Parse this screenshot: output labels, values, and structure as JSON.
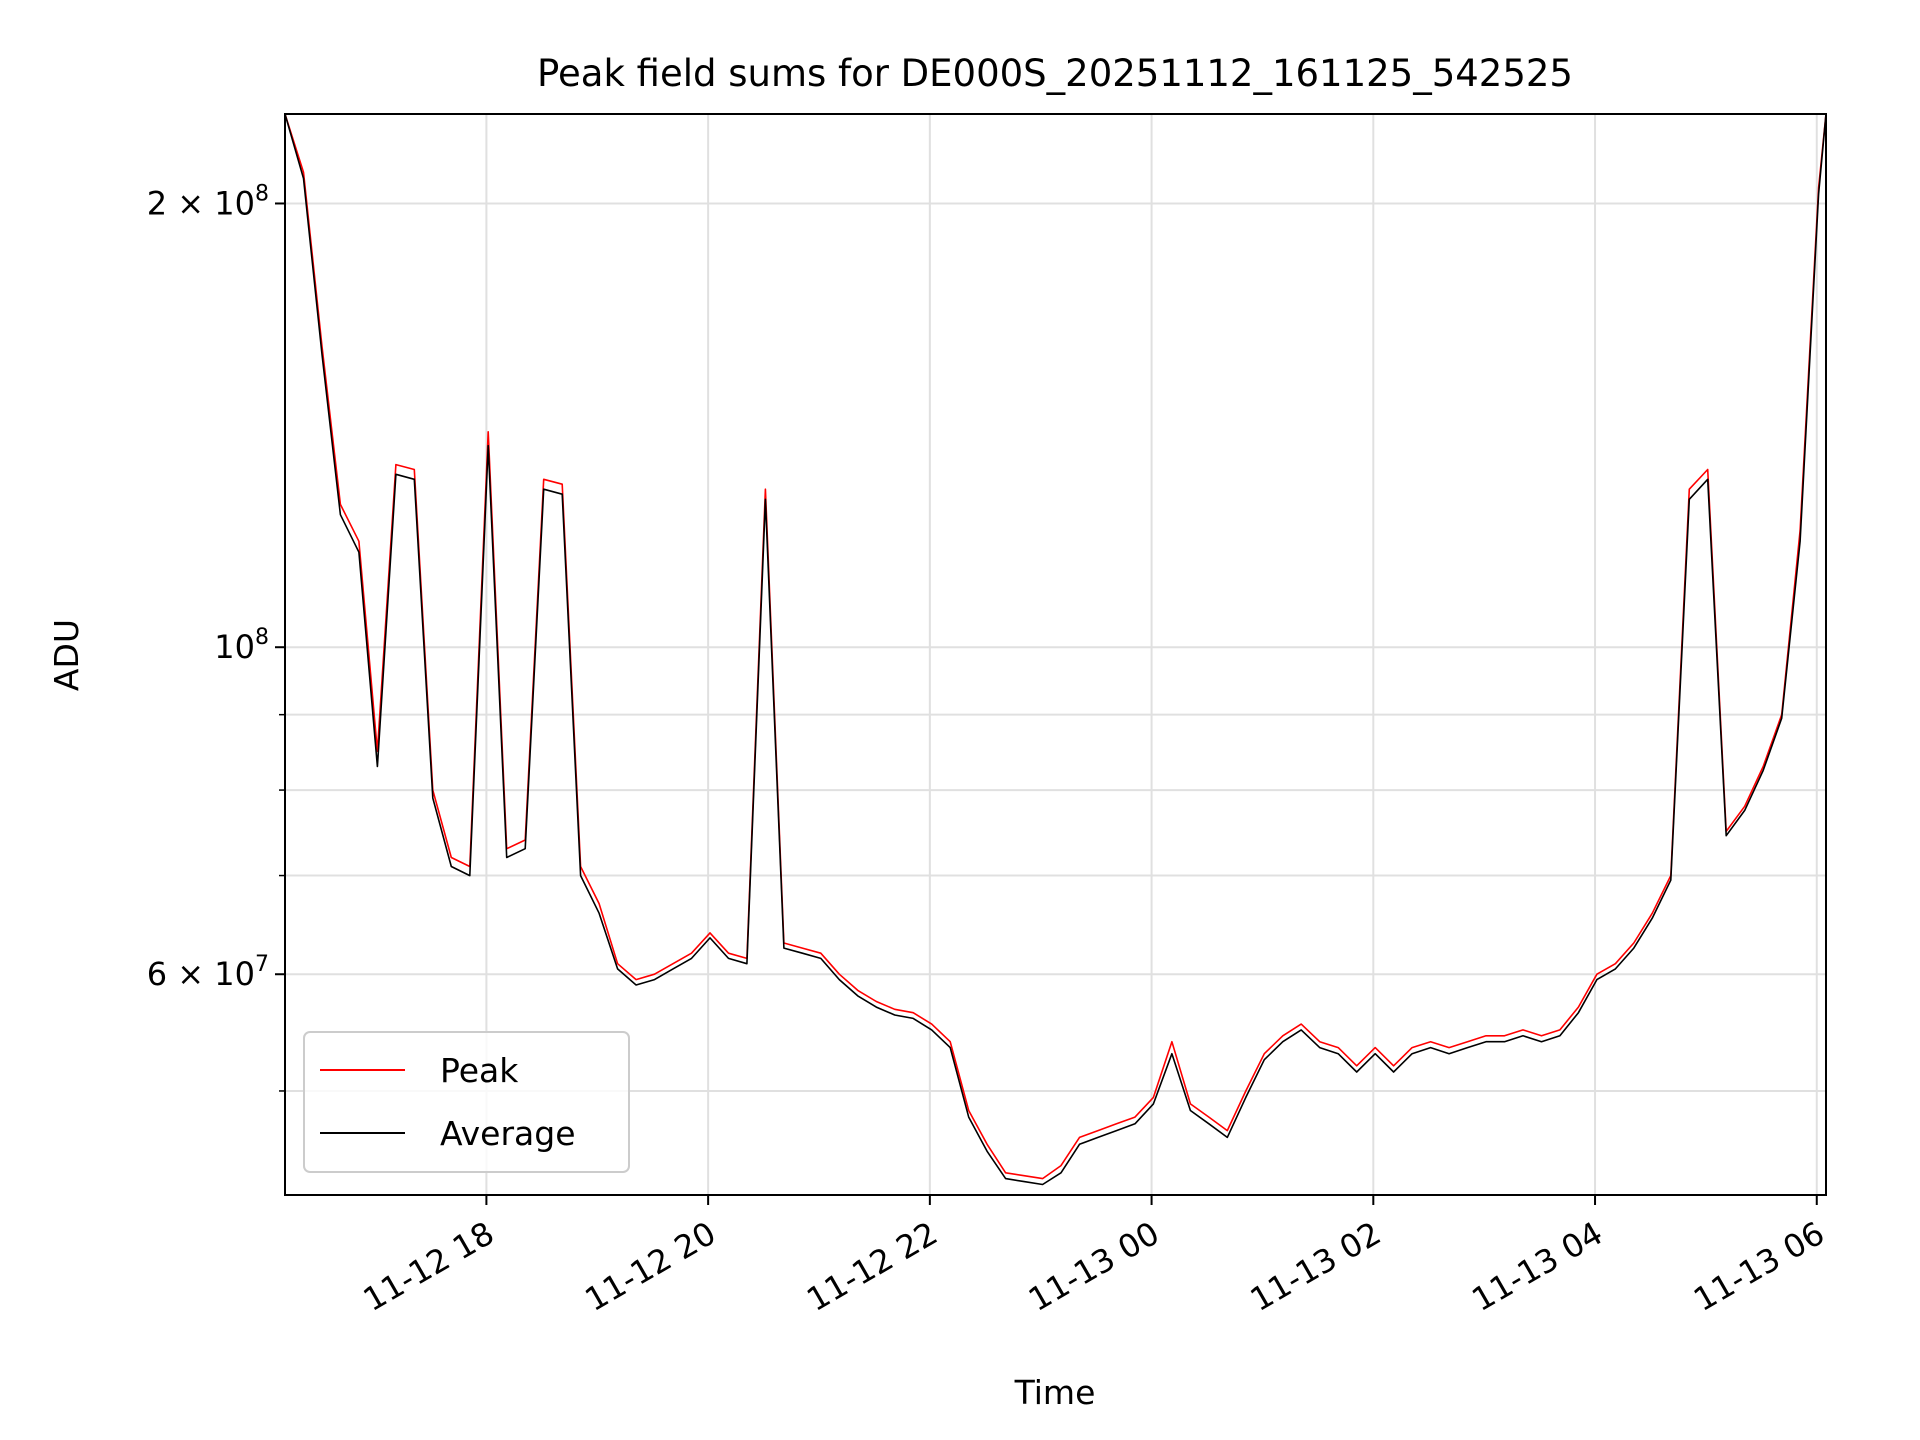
{
  "chart_data": {
    "type": "line",
    "title": "Peak field sums for DE000S_20251112_161125_542525",
    "xlabel": "Time",
    "ylabel": "ADU",
    "yscale": "log",
    "xlim": [
      "2025-11-12 16:11",
      "2025-11-13 06:05"
    ],
    "ylim": [
      42500000,
      230000000
    ],
    "grid": true,
    "legend_position": "lower-left",
    "x_ticks": [
      {
        "label": "11-12 18",
        "value": "2025-11-12 18:00"
      },
      {
        "label": "11-12 20",
        "value": "2025-11-12 20:00"
      },
      {
        "label": "11-12 22",
        "value": "2025-11-12 22:00"
      },
      {
        "label": "11-13 00",
        "value": "2025-11-13 00:00"
      },
      {
        "label": "11-13 02",
        "value": "2025-11-13 02:00"
      },
      {
        "label": "11-13 04",
        "value": "2025-11-13 04:00"
      },
      {
        "label": "11-13 06",
        "value": "2025-11-13 06:00"
      }
    ],
    "y_major_ticks": [
      {
        "value": 100000000,
        "base": "10",
        "exp": "8"
      },
      {
        "value": 60000000,
        "base": "6 × 10",
        "exp": "7"
      },
      {
        "value": 200000000,
        "base": "2 × 10",
        "exp": "8"
      }
    ],
    "y_minor_ticks": [
      50000000,
      70000000,
      80000000,
      90000000
    ],
    "series": [
      {
        "name": "Peak",
        "color": "#ff0000"
      },
      {
        "name": "Average",
        "color": "#000000"
      }
    ],
    "x": [
      "2025-11-12 16:11",
      "2025-11-12 16:21",
      "2025-11-12 16:31",
      "2025-11-12 16:41",
      "2025-11-12 16:51",
      "2025-11-12 17:01",
      "2025-11-12 17:11",
      "2025-11-12 17:21",
      "2025-11-12 17:31",
      "2025-11-12 17:41",
      "2025-11-12 17:51",
      "2025-11-12 18:01",
      "2025-11-12 18:11",
      "2025-11-12 18:21",
      "2025-11-12 18:31",
      "2025-11-12 18:41",
      "2025-11-12 18:51",
      "2025-11-12 19:01",
      "2025-11-12 19:11",
      "2025-11-12 19:21",
      "2025-11-12 19:31",
      "2025-11-12 19:41",
      "2025-11-12 19:51",
      "2025-11-12 20:01",
      "2025-11-12 20:11",
      "2025-11-12 20:21",
      "2025-11-12 20:31",
      "2025-11-12 20:41",
      "2025-11-12 20:51",
      "2025-11-12 21:01",
      "2025-11-12 21:11",
      "2025-11-12 21:21",
      "2025-11-12 21:31",
      "2025-11-12 21:41",
      "2025-11-12 21:51",
      "2025-11-12 22:01",
      "2025-11-12 22:11",
      "2025-11-12 22:21",
      "2025-11-12 22:31",
      "2025-11-12 22:41",
      "2025-11-12 22:51",
      "2025-11-12 23:01",
      "2025-11-12 23:11",
      "2025-11-12 23:21",
      "2025-11-12 23:31",
      "2025-11-12 23:41",
      "2025-11-12 23:51",
      "2025-11-13 00:01",
      "2025-11-13 00:11",
      "2025-11-13 00:21",
      "2025-11-13 00:31",
      "2025-11-13 00:41",
      "2025-11-13 00:51",
      "2025-11-13 01:01",
      "2025-11-13 01:11",
      "2025-11-13 01:21",
      "2025-11-13 01:31",
      "2025-11-13 01:41",
      "2025-11-13 01:51",
      "2025-11-13 02:01",
      "2025-11-13 02:11",
      "2025-11-13 02:21",
      "2025-11-13 02:31",
      "2025-11-13 02:41",
      "2025-11-13 02:51",
      "2025-11-13 03:01",
      "2025-11-13 03:11",
      "2025-11-13 03:21",
      "2025-11-13 03:31",
      "2025-11-13 03:41",
      "2025-11-13 03:51",
      "2025-11-13 04:01",
      "2025-11-13 04:11",
      "2025-11-13 04:21",
      "2025-11-13 04:31",
      "2025-11-13 04:41",
      "2025-11-13 04:51",
      "2025-11-13 05:01",
      "2025-11-13 05:11",
      "2025-11-13 05:21",
      "2025-11-13 05:31",
      "2025-11-13 05:41",
      "2025-11-13 05:51",
      "2025-11-13 06:01",
      "2025-11-13 06:05"
    ],
    "peak": [
      230000000,
      210000000,
      160000000,
      125000000,
      118000000,
      85000000,
      133000000,
      132000000,
      80000000,
      72000000,
      71000000,
      140000000,
      73000000,
      74000000,
      130000000,
      129000000,
      71000000,
      67000000,
      61000000,
      59500000,
      60000000,
      61000000,
      62000000,
      64000000,
      62000000,
      61500000,
      128000000,
      63000000,
      62500000,
      62000000,
      60000000,
      58500000,
      57500000,
      56800000,
      56500000,
      55500000,
      54000000,
      48500000,
      46000000,
      44000000,
      43800000,
      43600000,
      44500000,
      46500000,
      47000000,
      47500000,
      48000000,
      49500000,
      54000000,
      49000000,
      48000000,
      47000000,
      50000000,
      53000000,
      54500000,
      55500000,
      54000000,
      53500000,
      52000000,
      53500000,
      52000000,
      53500000,
      54000000,
      53500000,
      54000000,
      54500000,
      54500000,
      55000000,
      54500000,
      55000000,
      57000000,
      60000000,
      61000000,
      63000000,
      66000000,
      70000000,
      128000000,
      132000000,
      75000000,
      78000000,
      83000000,
      90000000,
      120000000,
      205000000,
      230000000
    ],
    "average": [
      230000000,
      208000000,
      158000000,
      123000000,
      116000000,
      83000000,
      131000000,
      130000000,
      79000000,
      71000000,
      70000000,
      137000000,
      72000000,
      73000000,
      128000000,
      127000000,
      70000000,
      66000000,
      60500000,
      59000000,
      59500000,
      60500000,
      61500000,
      63500000,
      61500000,
      61000000,
      126000000,
      62500000,
      62000000,
      61500000,
      59500000,
      58000000,
      57000000,
      56300000,
      56000000,
      55000000,
      53500000,
      48000000,
      45500000,
      43600000,
      43400000,
      43200000,
      44000000,
      46000000,
      46500000,
      47000000,
      47500000,
      49000000,
      53000000,
      48500000,
      47500000,
      46500000,
      49500000,
      52500000,
      54000000,
      55000000,
      53500000,
      53000000,
      51500000,
      53000000,
      51500000,
      53000000,
      53500000,
      53000000,
      53500000,
      54000000,
      54000000,
      54500000,
      54000000,
      54500000,
      56500000,
      59500000,
      60500000,
      62500000,
      65500000,
      69500000,
      126000000,
      130000000,
      74500000,
      77500000,
      82500000,
      89500000,
      118000000,
      203000000,
      230000000
    ]
  }
}
